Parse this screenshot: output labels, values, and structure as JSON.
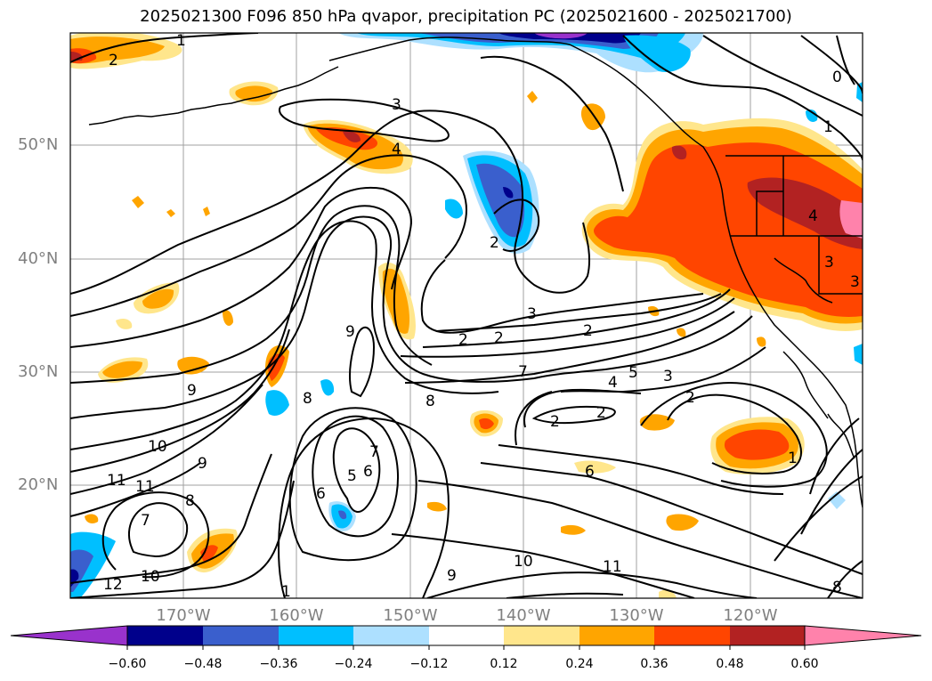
{
  "title": "2025021300 F096 850 hPa qvapor, precipitation PC (2025021600 - 2025021700)",
  "map": {
    "lat_ticks": [
      "50°N",
      "40°N",
      "30°N",
      "20°N"
    ],
    "lon_ticks": [
      "170°W",
      "160°W",
      "150°W",
      "140°W",
      "130°W",
      "120°W"
    ],
    "gridlines": true,
    "region": "North Pacific / West coast of North America"
  },
  "contour_labels": [
    "1",
    "2",
    "3",
    "4",
    "2",
    "3",
    "9",
    "2",
    "2",
    "2",
    "3",
    "4",
    "5",
    "7",
    "8",
    "8",
    "2",
    "2",
    "2",
    "6",
    "1",
    "7",
    "10",
    "9",
    "11",
    "11",
    "8",
    "7",
    "6",
    "5",
    "6",
    "9",
    "10",
    "11",
    "9",
    "12",
    "10",
    "0",
    "1",
    "3",
    "3",
    "4",
    "1",
    "8"
  ],
  "colorbar": {
    "ticks": [
      "−0.60",
      "−0.48",
      "−0.36",
      "−0.24",
      "−0.12",
      "0.12",
      "0.24",
      "0.36",
      "0.48",
      "0.60"
    ],
    "colors": [
      "#9932CC",
      "#00008B",
      "#3A5FCD",
      "#00BFFF",
      "#ADE0FF",
      "#FFFFFF",
      "#FFE68C",
      "#FFA500",
      "#FF4500",
      "#B22222",
      "#FF82AB"
    ],
    "extend": "both"
  }
}
